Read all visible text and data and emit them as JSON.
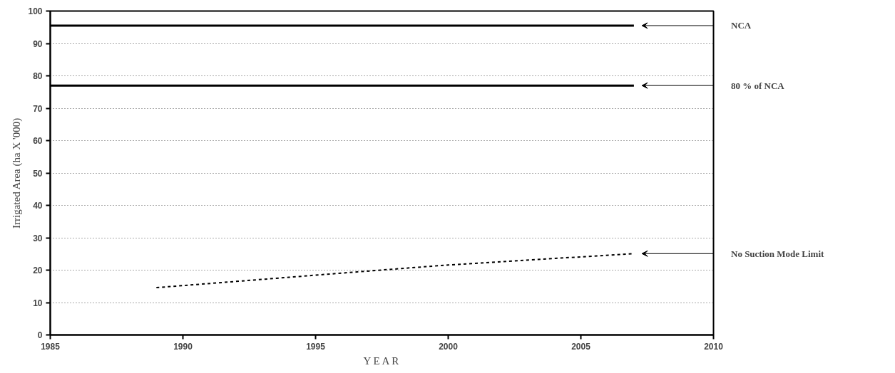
{
  "chart_data": {
    "type": "line",
    "xlabel": "Y E A R",
    "ylabel": "Irrigated Area (ha X '000)",
    "xlim": [
      1985,
      2010
    ],
    "xticks": [
      1985,
      1990,
      1995,
      2000,
      2005,
      2010
    ],
    "ylim": [
      0,
      100
    ],
    "yticks": [
      0,
      10,
      20,
      30,
      40,
      50,
      60,
      70,
      80,
      90,
      100
    ],
    "grid": "y",
    "series": [
      {
        "name": "NCA",
        "color": "#000000",
        "line_style": "solid",
        "x": [
          1985,
          2007
        ],
        "values": [
          95.5,
          95.5
        ]
      },
      {
        "name": "80 % of NCA",
        "color": "#000000",
        "line_style": "solid",
        "x": [
          1985,
          2007
        ],
        "values": [
          77,
          77
        ]
      },
      {
        "name": "No Suction Mode Limit",
        "color": "#000000",
        "line_style": "dashed",
        "x": [
          1989,
          1994,
          1996,
          2000,
          2003.6,
          2007
        ],
        "values": [
          14.6,
          17.8,
          19.1,
          21.6,
          23.4,
          25.1
        ]
      }
    ]
  }
}
